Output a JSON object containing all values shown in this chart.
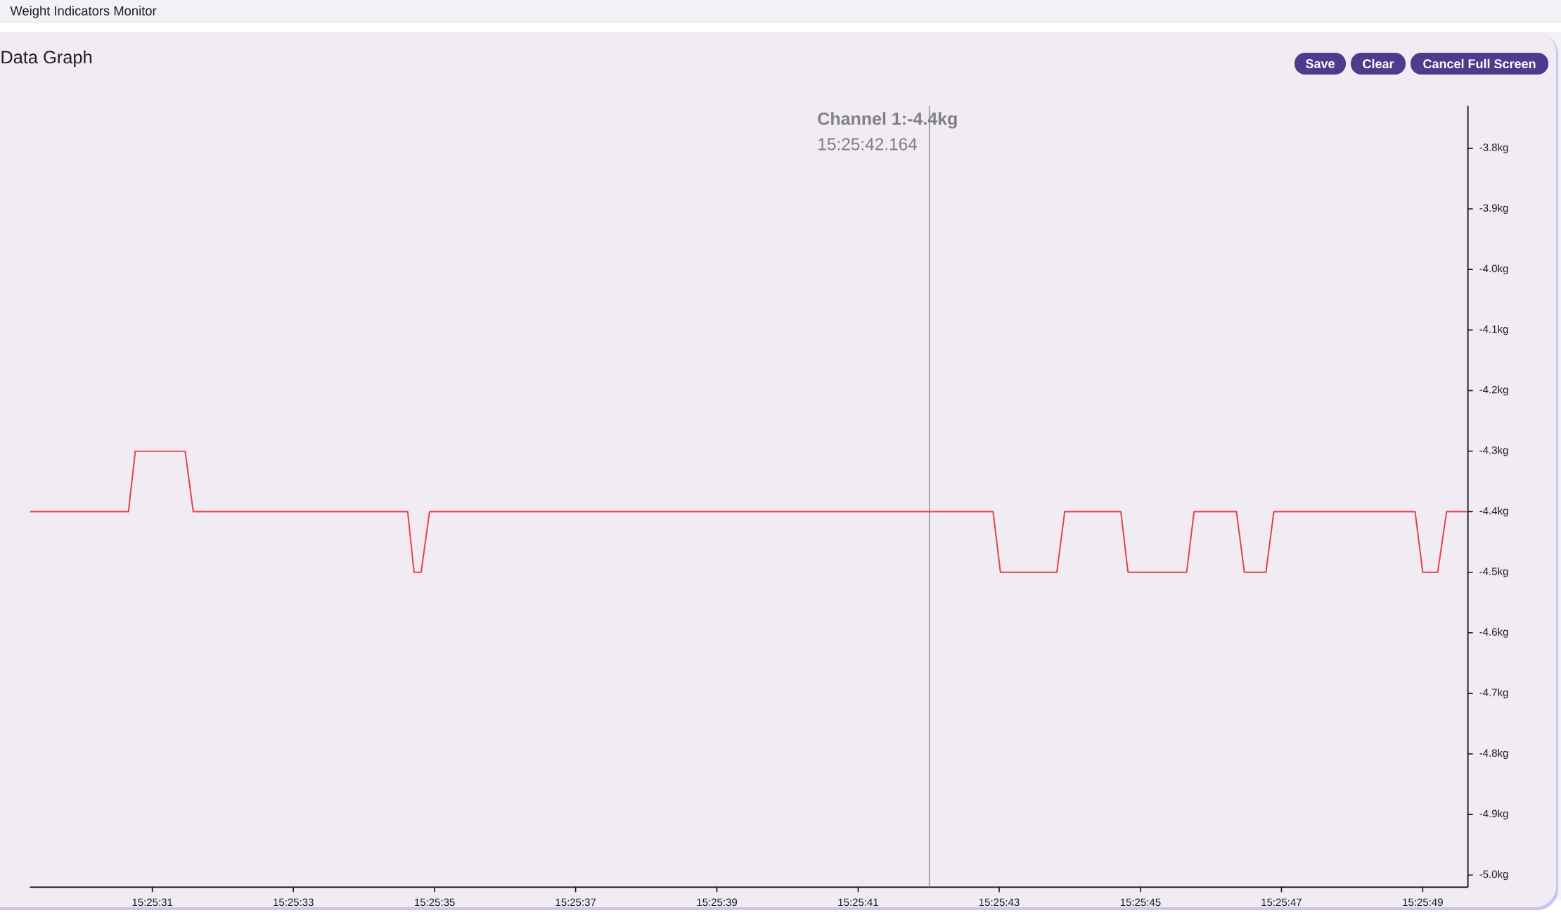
{
  "chart_data": {
    "type": "line",
    "title": "Data Graph",
    "annotations": [
      "Weight Indicators Monitor",
      "Save",
      "Clear",
      "Cancel Full Screen",
      "Channel 1:-4.4kg",
      "15:25:42.164"
    ],
    "x": [
      15.424796,
      15.425184,
      15.425211,
      15.425407,
      15.425439,
      15.426283,
      15.426308,
      15.426336,
      15.426369,
      15.428587,
      15.428616,
      15.428838,
      15.428869,
      15.42909,
      15.429118,
      15.429349,
      15.429378,
      15.429545,
      15.429576,
      15.429661,
      15.429692,
      15.430248,
      15.430278,
      15.430337,
      15.430372,
      15.430456
    ],
    "values": [
      -4.4,
      -4.4,
      -4.3,
      -4.3,
      -4.4,
      -4.4,
      -4.5,
      -4.5,
      -4.4,
      -4.4,
      -4.5,
      -4.5,
      -4.4,
      -4.4,
      -4.5,
      -4.5,
      -4.4,
      -4.4,
      -4.5,
      -4.5,
      -4.4,
      -4.4,
      -4.5,
      -4.5,
      -4.4,
      -4.4
    ],
    "color": "#e8404a",
    "xlim": [
      15.424796,
      15.430456
    ],
    "xticks": [
      {
        "value": 15.425278,
        "label": "15:25:31"
      },
      {
        "value": 15.425833,
        "label": "15:25:33"
      },
      {
        "value": 15.426389,
        "label": "15:25:35"
      },
      {
        "value": 15.426944,
        "label": "15:25:37"
      },
      {
        "value": 15.4275,
        "label": "15:25:39"
      },
      {
        "value": 15.428056,
        "label": "15:25:41"
      },
      {
        "value": 15.428611,
        "label": "15:25:43"
      },
      {
        "value": 15.429167,
        "label": "15:25:45"
      },
      {
        "value": 15.429722,
        "label": "15:25:47"
      },
      {
        "value": 15.430278,
        "label": "15:25:49"
      }
    ],
    "ylim": [
      -5.02,
      -3.73
    ],
    "yticks": [
      {
        "value": -3.8,
        "label": "-3.8kg"
      },
      {
        "value": -3.9,
        "label": "-3.9kg"
      },
      {
        "value": -4.0,
        "label": "-4.0kg"
      },
      {
        "value": -4.1,
        "label": "-4.1kg"
      },
      {
        "value": -4.2,
        "label": "-4.2kg"
      },
      {
        "value": -4.3,
        "label": "-4.3kg"
      },
      {
        "value": -4.4,
        "label": "-4.4kg"
      },
      {
        "value": -4.5,
        "label": "-4.5kg"
      },
      {
        "value": -4.6,
        "label": "-4.6kg"
      },
      {
        "value": -4.7,
        "label": "-4.7kg"
      },
      {
        "value": -4.8,
        "label": "-4.8kg"
      },
      {
        "value": -4.9,
        "label": "-4.9kg"
      },
      {
        "value": -5.0,
        "label": "-5.0kg"
      }
    ],
    "ref_lines": [
      {
        "axis": "x",
        "value": 15.428336,
        "color": "#8a8a8a"
      }
    ]
  }
}
